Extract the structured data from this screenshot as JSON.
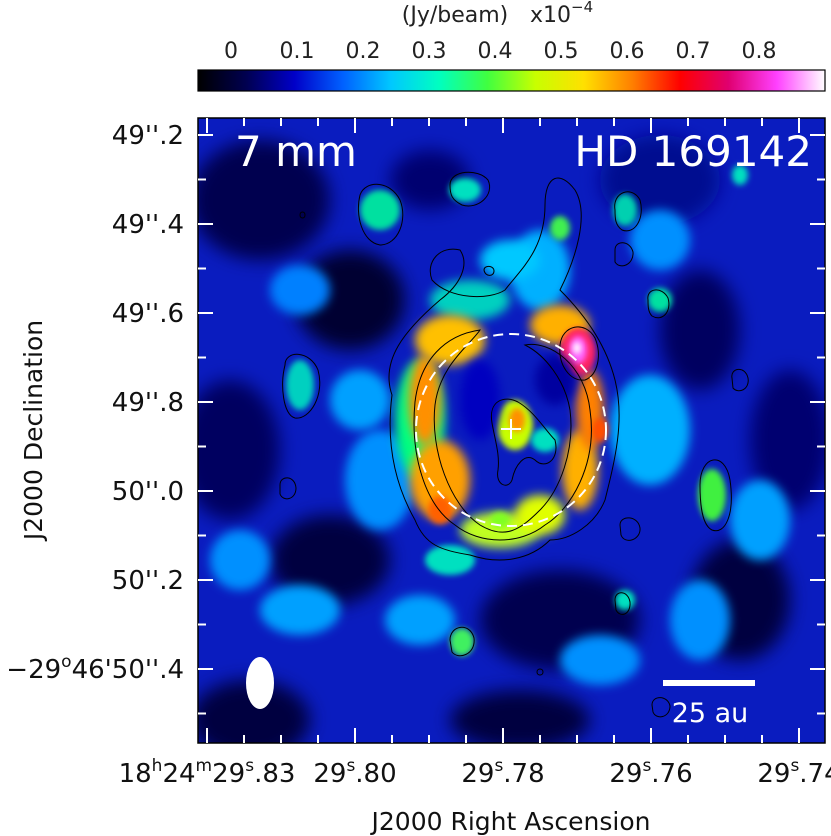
{
  "colorbar": {
    "unit_label": "(Jy/beam)",
    "scale_label": "x10",
    "scale_exponent": "−4",
    "ticks": [
      "0",
      "0.1",
      "0.2",
      "0.3",
      "0.4",
      "0.5",
      "0.6",
      "0.7",
      "0.8"
    ],
    "tick_values": [
      0,
      0.1,
      0.2,
      0.3,
      0.4,
      0.5,
      0.6,
      0.7,
      0.8
    ],
    "range": [
      -0.05,
      0.9
    ],
    "colormap": [
      "#000000",
      "#000050",
      "#0000c8",
      "#0060ff",
      "#00c8ff",
      "#00ffc0",
      "#40ff40",
      "#c8ff00",
      "#ffe000",
      "#ff8000",
      "#ff0000",
      "#e00070",
      "#ff40ff",
      "#ffffff"
    ]
  },
  "image": {
    "wavelength_label": "7 mm",
    "target_label": "HD 169142",
    "scale_bar_label": "25 au"
  },
  "axes": {
    "xlabel": "J2000 Right Ascension",
    "ylabel": "J2000 Declination",
    "x_ticks": [
      {
        "h": "18",
        "m": "24",
        "s": "29",
        "frac": ".83"
      },
      {
        "h": "",
        "m": "",
        "s": "29",
        "frac": ".80"
      },
      {
        "h": "",
        "m": "",
        "s": "29",
        "frac": ".78"
      },
      {
        "h": "",
        "m": "",
        "s": "29",
        "frac": ".76"
      },
      {
        "h": "",
        "m": "",
        "s": "29",
        "frac": ".74"
      }
    ],
    "y_ticks": [
      {
        "prefix": "",
        "deg": "",
        "amin": "",
        "sec": "49",
        "frac": ".2"
      },
      {
        "prefix": "",
        "deg": "",
        "amin": "",
        "sec": "49",
        "frac": ".4"
      },
      {
        "prefix": "",
        "deg": "",
        "amin": "",
        "sec": "49",
        "frac": ".6"
      },
      {
        "prefix": "",
        "deg": "",
        "amin": "",
        "sec": "49",
        "frac": ".8"
      },
      {
        "prefix": "",
        "deg": "",
        "amin": "",
        "sec": "50",
        "frac": ".0"
      },
      {
        "prefix": "",
        "deg": "",
        "amin": "",
        "sec": "50",
        "frac": ".2"
      },
      {
        "prefix": "−29",
        "deg": "o",
        "amin": "46'",
        "sec": "50",
        "frac": ".4"
      }
    ]
  }
}
